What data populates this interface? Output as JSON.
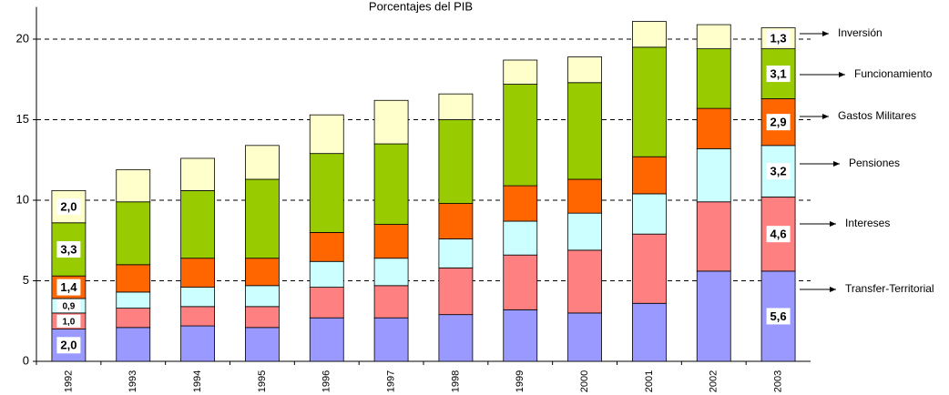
{
  "chart_data": {
    "type": "stacked-bar",
    "title": "Porcentajes del PIB",
    "categories": [
      "1992",
      "1993",
      "1994",
      "1995",
      "1996",
      "1997",
      "1998",
      "1999",
      "2000",
      "2001",
      "2002",
      "2003"
    ],
    "series": [
      {
        "name": "Transfer-Territorial",
        "color": "#9999ff",
        "values": [
          2.0,
          2.1,
          2.2,
          2.1,
          2.7,
          2.7,
          2.9,
          3.2,
          3.0,
          3.6,
          5.6,
          5.6
        ],
        "value_labels": [
          "2,0",
          null,
          null,
          null,
          null,
          null,
          null,
          null,
          null,
          null,
          null,
          "5,6"
        ]
      },
      {
        "name": "Intereses",
        "color": "#ff8080",
        "values": [
          1.0,
          1.2,
          1.2,
          1.3,
          1.9,
          2.0,
          2.9,
          3.4,
          3.9,
          4.3,
          4.3,
          4.6
        ],
        "value_labels": [
          "1,0",
          null,
          null,
          null,
          null,
          null,
          null,
          null,
          null,
          null,
          null,
          "4,6"
        ]
      },
      {
        "name": "Pensiones",
        "color": "#ccffff",
        "values": [
          0.9,
          1.0,
          1.2,
          1.3,
          1.6,
          1.7,
          1.8,
          2.1,
          2.3,
          2.5,
          3.3,
          3.2
        ],
        "value_labels": [
          "0,9",
          null,
          null,
          null,
          null,
          null,
          null,
          null,
          null,
          null,
          null,
          "3,2"
        ]
      },
      {
        "name": "Gastos Militares",
        "color": "#ff6600",
        "values": [
          1.4,
          1.7,
          1.8,
          1.7,
          1.8,
          2.1,
          2.2,
          2.2,
          2.1,
          2.3,
          2.5,
          2.9
        ],
        "value_labels": [
          "1,4",
          null,
          null,
          null,
          null,
          null,
          null,
          null,
          null,
          null,
          null,
          "2,9"
        ]
      },
      {
        "name": "Funcionamiento",
        "color": "#99cc00",
        "values": [
          3.3,
          3.9,
          4.2,
          4.9,
          4.9,
          5.0,
          5.2,
          6.3,
          6.0,
          6.8,
          3.7,
          3.1
        ],
        "value_labels": [
          "3,3",
          null,
          null,
          null,
          null,
          null,
          null,
          null,
          null,
          null,
          null,
          "3,1"
        ]
      },
      {
        "name": "Inversión",
        "color": "#ffffcc",
        "values": [
          2.0,
          2.0,
          2.0,
          2.1,
          2.4,
          2.7,
          1.6,
          1.5,
          1.6,
          1.6,
          1.5,
          1.3
        ],
        "value_labels": [
          "2,0",
          null,
          null,
          null,
          null,
          null,
          null,
          null,
          null,
          null,
          null,
          "1,3"
        ]
      }
    ],
    "ylim": [
      0,
      22
    ],
    "yticks": [
      0,
      5,
      10,
      15,
      20
    ],
    "grid": true
  }
}
